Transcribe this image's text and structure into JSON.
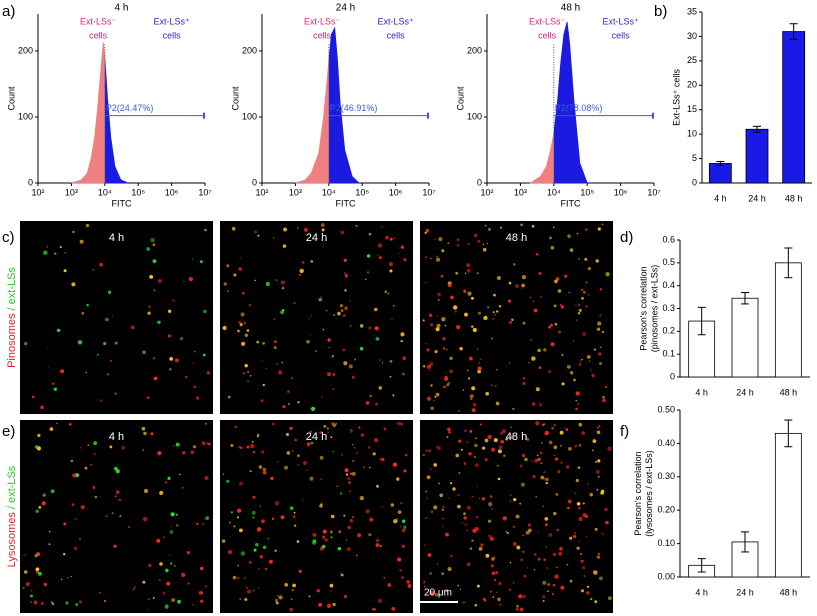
{
  "panel_labels": [
    "a)",
    "b)",
    "c)",
    "d)",
    "e)",
    "f)"
  ],
  "chart_data": [
    {
      "type": "area",
      "title": "4 h",
      "xlabel": "FITC",
      "ylabel": "Count",
      "log_x": true,
      "x": [
        1000,
        2000,
        3000,
        4000,
        5000,
        6000,
        7000,
        8000,
        9000,
        10000,
        12000,
        15000,
        20000,
        30000,
        50000
      ],
      "values": [
        0,
        5,
        15,
        40,
        70,
        110,
        150,
        185,
        213,
        190,
        130,
        70,
        25,
        5,
        0
      ],
      "color_below_gate": "#f08080",
      "color_above_gate": "#1a1ae0",
      "xlim": [
        100,
        10000000
      ],
      "xticks": [
        {
          "value": 100,
          "label": "10²"
        },
        {
          "value": 1000,
          "label": "10³"
        },
        {
          "value": 10000,
          "label": "10⁴"
        },
        {
          "value": 100000,
          "label": "10⁵"
        },
        {
          "value": 1000000,
          "label": "10⁶"
        },
        {
          "value": 10000000,
          "label": "10⁷"
        }
      ],
      "ylim": [
        0,
        256
      ],
      "yticks": [
        0,
        100,
        200
      ],
      "gate": {
        "start": 10000,
        "end": 10000000,
        "level": 102,
        "label": "P2(24.47%)",
        "color": "#3a5bd9"
      },
      "annotations": {
        "negative": [
          "Ext-LSs⁻",
          "cells"
        ],
        "negative_color": "#e0207a",
        "positive": [
          "Ext-LSs⁺",
          "cells"
        ],
        "positive_color": "#2a2ad0"
      }
    },
    {
      "type": "area",
      "title": "24 h",
      "xlabel": "FITC",
      "ylabel": "Count",
      "log_x": true,
      "x": [
        1000,
        2000,
        3000,
        5000,
        7000,
        9000,
        10000,
        12000,
        15000,
        18000,
        22000,
        30000,
        50000,
        80000
      ],
      "values": [
        0,
        5,
        15,
        45,
        100,
        160,
        185,
        225,
        235,
        190,
        120,
        50,
        10,
        0
      ],
      "color_below_gate": "#f08080",
      "color_above_gate": "#1a1ae0",
      "xlim": [
        100,
        10000000
      ],
      "xticks": [
        {
          "value": 100,
          "label": "10²"
        },
        {
          "value": 1000,
          "label": "10³"
        },
        {
          "value": 10000,
          "label": "10⁴"
        },
        {
          "value": 100000,
          "label": "10⁵"
        },
        {
          "value": 1000000,
          "label": "10⁶"
        },
        {
          "value": 10000000,
          "label": "10⁷"
        }
      ],
      "ylim": [
        0,
        256
      ],
      "yticks": [
        0,
        100,
        200
      ],
      "gate": {
        "start": 10000,
        "end": 10000000,
        "level": 102,
        "label": "P2(46.91%)",
        "color": "#3a5bd9"
      },
      "annotations": {
        "negative": [
          "Ext-LSs⁻",
          "cells"
        ],
        "negative_color": "#e0207a",
        "positive": [
          "Ext-LSs⁺",
          "cells"
        ],
        "positive_color": "#2a2ad0"
      }
    },
    {
      "type": "area",
      "title": "48 h",
      "xlabel": "FITC",
      "ylabel": "Count",
      "log_x": true,
      "x": [
        2000,
        4000,
        6000,
        8000,
        10000,
        13000,
        16000,
        20000,
        25000,
        30000,
        40000,
        60000,
        100000
      ],
      "values": [
        0,
        10,
        25,
        50,
        75,
        125,
        180,
        225,
        244,
        210,
        125,
        30,
        0
      ],
      "color_below_gate": "#f08080",
      "color_above_gate": "#1a1ae0",
      "xlim": [
        100,
        10000000
      ],
      "xticks": [
        {
          "value": 100,
          "label": "10²"
        },
        {
          "value": 1000,
          "label": "10³"
        },
        {
          "value": 10000,
          "label": "10⁴"
        },
        {
          "value": 100000,
          "label": "10⁵"
        },
        {
          "value": 1000000,
          "label": "10⁶"
        },
        {
          "value": 10000000,
          "label": "10⁷"
        }
      ],
      "ylim": [
        0,
        256
      ],
      "yticks": [
        0,
        100,
        200
      ],
      "gate": {
        "start": 10000,
        "end": 10000000,
        "level": 102,
        "label": "P2(78.08%)",
        "color": "#3a5bd9"
      },
      "annotations": {
        "negative": [
          "Ext-LSs⁻",
          "cells"
        ],
        "negative_color": "#e0207a",
        "positive": [
          "Ext-LSs⁺",
          "cells"
        ],
        "positive_color": "#2a2ad0"
      }
    },
    {
      "type": "bar",
      "ylabel": [
        "Ext-LSs⁺ cells"
      ],
      "categories": [
        "4 h",
        "24 h",
        "48 h"
      ],
      "values": [
        4,
        11,
        31
      ],
      "errors": [
        0.4,
        0.6,
        1.6
      ],
      "color": "#1a1ae6",
      "ylim": [
        0,
        35
      ],
      "yticks": [
        0,
        5,
        10,
        15,
        20,
        25,
        30,
        35
      ]
    },
    {
      "type": "bar",
      "ylabel": [
        "Pearson's correlation",
        "(pinosomes / ext-LSs)"
      ],
      "categories": [
        "4 h",
        "24 h",
        "48 h"
      ],
      "values": [
        0.245,
        0.345,
        0.5
      ],
      "errors": [
        0.06,
        0.025,
        0.065
      ],
      "color": "#ffffff",
      "ylim": [
        0,
        0.6
      ],
      "yticks": [
        0,
        0.1,
        0.2,
        0.3,
        0.4,
        0.5,
        0.6
      ]
    },
    {
      "type": "bar",
      "ylabel": [
        "Pearson's correlation",
        "(lysosomes / ext-LSs)"
      ],
      "categories": [
        "4 h",
        "24 h",
        "48 h"
      ],
      "values": [
        0.035,
        0.105,
        0.43
      ],
      "errors": [
        0.02,
        0.03,
        0.04
      ],
      "color": "#ffffff",
      "ylim": [
        0,
        0.5
      ],
      "yticks": [
        {
          "value": 0,
          "label": "0.00"
        },
        {
          "value": 0.1,
          "label": "0.10"
        },
        {
          "value": 0.2,
          "label": "0.20"
        },
        {
          "value": 0.3,
          "label": "0.30"
        },
        {
          "value": 0.4,
          "label": "0.40"
        },
        {
          "value": 0.5,
          "label": "0.50"
        }
      ]
    }
  ],
  "micrographs": {
    "rows": [
      {
        "label_parts": [
          "Pinosomes",
          "/ ext-LSs"
        ],
        "label_colors": [
          "#e8202a",
          "#22cc22"
        ],
        "titles": [
          "4 h",
          "24 h",
          "48 h"
        ]
      },
      {
        "label_parts": [
          "Lysosomes",
          "/ ext-LSs"
        ],
        "label_colors": [
          "#e8202a",
          "#22cc22"
        ],
        "titles": [
          "4 h",
          "24 h",
          "48 h"
        ]
      }
    ],
    "scale_bar": "20 μm"
  }
}
